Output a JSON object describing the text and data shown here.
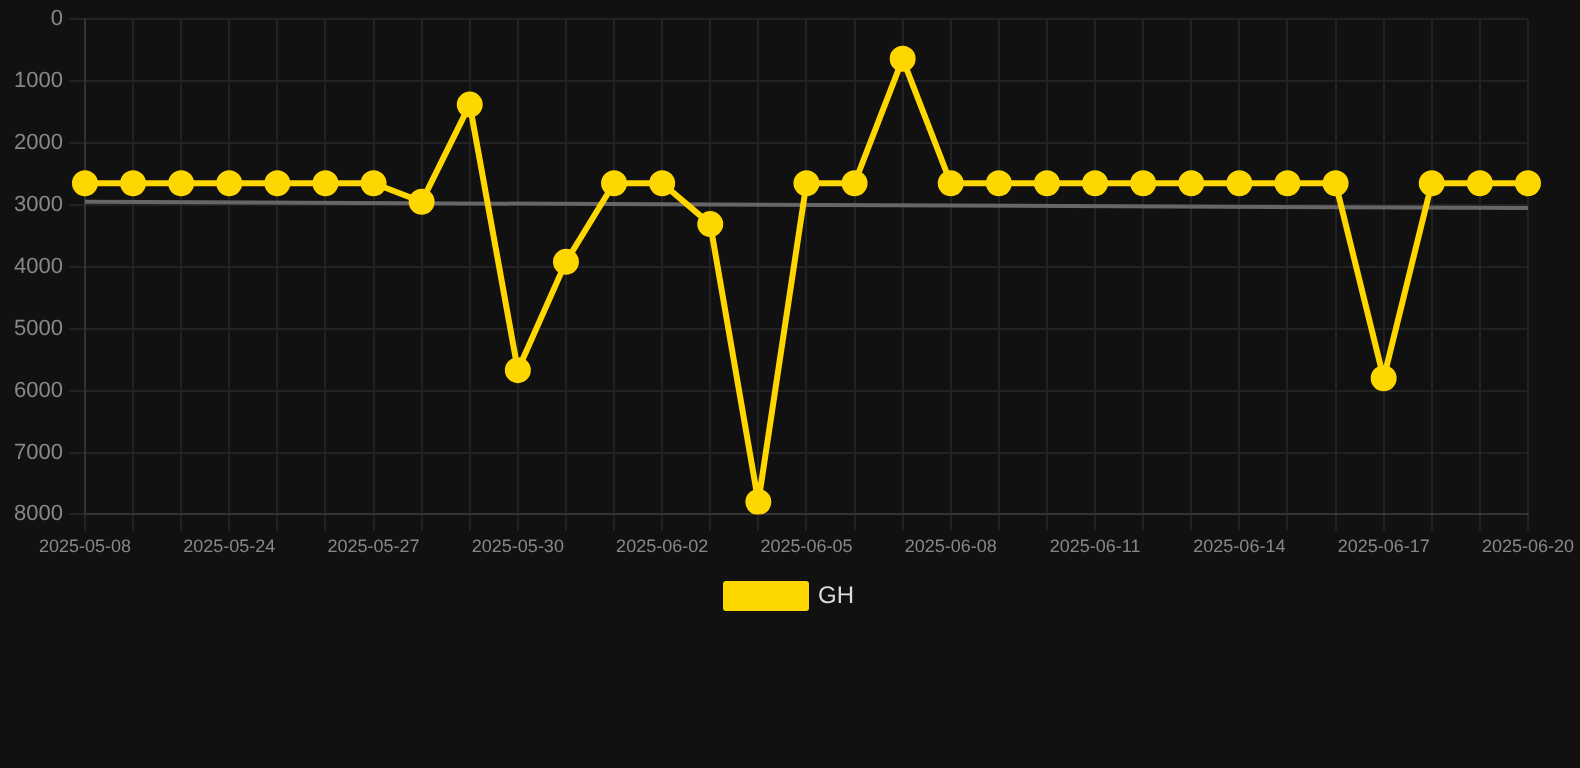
{
  "chart_data": {
    "type": "line",
    "categories": [
      "2025-05-08",
      null,
      null,
      "2025-05-24",
      null,
      null,
      "2025-05-27",
      null,
      null,
      "2025-05-30",
      null,
      null,
      "2025-06-02",
      null,
      null,
      "2025-06-05",
      null,
      null,
      "2025-06-08",
      null,
      null,
      "2025-06-11",
      null,
      null,
      "2025-06-14",
      null,
      null,
      "2025-06-17",
      null,
      null,
      "2025-06-20"
    ],
    "series": [
      {
        "name": "GH",
        "color": "#ffd700",
        "marker": "circle",
        "values": [
          2650,
          2650,
          2650,
          2650,
          2650,
          2650,
          2650,
          2950,
          1380,
          5670,
          3920,
          2650,
          2650,
          3310,
          7800,
          2650,
          2650,
          640,
          2650,
          2650,
          2650,
          2650,
          2650,
          2650,
          2650,
          2650,
          2650,
          5800,
          2650,
          2650,
          2650
        ]
      },
      {
        "type": "line",
        "color": "#666666",
        "marker": "none",
        "values": [
          2950,
          null,
          null,
          null,
          null,
          null,
          null,
          null,
          null,
          null,
          null,
          null,
          null,
          null,
          null,
          null,
          null,
          null,
          null,
          null,
          null,
          null,
          null,
          null,
          null,
          null,
          null,
          null,
          null,
          null,
          3050
        ]
      }
    ],
    "ylim": [
      8000,
      0
    ],
    "yticks": [
      0,
      1000,
      2000,
      3000,
      4000,
      5000,
      6000,
      7000,
      8000
    ],
    "grid": true,
    "legend": "bottom"
  }
}
